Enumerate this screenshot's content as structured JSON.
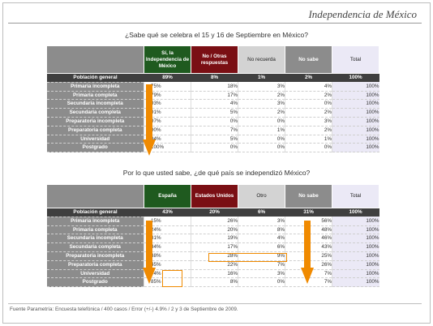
{
  "header": {
    "title": "Independencia de México"
  },
  "footer": {
    "source": "Fuente Parametría: Encuesta telefónica / 400 casos / Error (+/-) 4.9% / 2 y 3 de Septiembre  de 2009."
  },
  "colors": {
    "green": "#1f5a1f",
    "red": "#7a0f14",
    "grey": "#a8a8a8",
    "dark_grey": "#8c8c8c",
    "total_bg": "#ebe9f6",
    "arrow_orange": "#f08a00"
  },
  "chart_data": [
    {
      "type": "table",
      "title": "¿Sabe qué se celebra el 15 y 16 de Septiembre en México?",
      "columns": [
        "Sí, la Independencia de México",
        "No / Otras respuestas",
        "No recuerda",
        "No sabe",
        "Total"
      ],
      "rows": [
        {
          "label": "Población general",
          "values": [
            "89%",
            "8%",
            "1%",
            "2%",
            "100%"
          ]
        },
        {
          "label": "Primaria  incompleta",
          "values": [
            "75%",
            "18%",
            "3%",
            "4%",
            "100%"
          ]
        },
        {
          "label": "Primaria completa",
          "values": [
            "79%",
            "17%",
            "2%",
            "2%",
            "100%"
          ]
        },
        {
          "label": "Secundaria incompleta",
          "values": [
            "93%",
            "4%",
            "3%",
            "0%",
            "100%"
          ]
        },
        {
          "label": "Secundaria completa",
          "values": [
            "91%",
            "5%",
            "2%",
            "2%",
            "100%"
          ]
        },
        {
          "label": "Preparatoria incompleta",
          "values": [
            "97%",
            "0%",
            "0%",
            "3%",
            "100%"
          ]
        },
        {
          "label": "Preparatoria completa",
          "values": [
            "90%",
            "7%",
            "1%",
            "2%",
            "100%"
          ]
        },
        {
          "label": "Universidad",
          "values": [
            "94%",
            "5%",
            "0%",
            "1%",
            "100%"
          ]
        },
        {
          "label": "Postgrado",
          "values": [
            "100%",
            "0%",
            "0%",
            "0%",
            "100%"
          ]
        }
      ]
    },
    {
      "type": "table",
      "title": "Por lo que usted sabe, ¿de qué país se independizó México?",
      "columns": [
        "España",
        "Estados Unidos",
        "Otro",
        "No sabe",
        "Total"
      ],
      "rows": [
        {
          "label": "Población general",
          "values": [
            "43%",
            "20%",
            "6%",
            "31%",
            "100%"
          ]
        },
        {
          "label": "Primaria  incompleta",
          "values": [
            "15%",
            "26%",
            "3%",
            "56%",
            "100%"
          ]
        },
        {
          "label": "Primaria completa",
          "values": [
            "24%",
            "20%",
            "8%",
            "48%",
            "100%"
          ]
        },
        {
          "label": "Secundaria incompleta",
          "values": [
            "31%",
            "19%",
            "4%",
            "46%",
            "100%"
          ]
        },
        {
          "label": "Secundaria completa",
          "values": [
            "34%",
            "17%",
            "6%",
            "43%",
            "100%"
          ]
        },
        {
          "label": "Preparatoria incompleta",
          "values": [
            "38%",
            "28%",
            "9%",
            "25%",
            "100%"
          ]
        },
        {
          "label": "Preparatoria completa",
          "values": [
            "45%",
            "22%",
            "7%",
            "26%",
            "100%"
          ]
        },
        {
          "label": "Universidad",
          "values": [
            "74%",
            "16%",
            "3%",
            "7%",
            "100%"
          ]
        },
        {
          "label": "Postgrado",
          "values": [
            "85%",
            "8%",
            "0%",
            "7%",
            "100%"
          ]
        }
      ]
    }
  ]
}
